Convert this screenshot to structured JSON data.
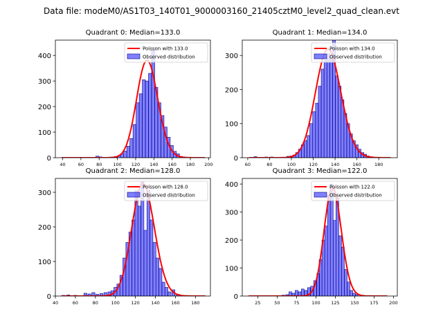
{
  "figure": {
    "suptitle": "Data file: modeM0/AS1T03_140T01_9000003160_21405cztM0_level2_quad_clean.evt"
  },
  "chart_data": [
    {
      "type": "bar",
      "title": "Quadrant 0: Median=133.0",
      "xlim": [
        32,
        202
      ],
      "ylim": [
        0,
        460
      ],
      "xticks": [
        40,
        60,
        80,
        100,
        120,
        140,
        160,
        180,
        200
      ],
      "yticks": [
        0,
        100,
        200,
        300,
        400
      ],
      "bin_width": 3.4,
      "legend": {
        "placement": "top-right",
        "entries": [
          "Poisson with 133.0",
          "Observed distribution"
        ]
      },
      "poisson_mean": 133.0,
      "curve_x_range": [
        39,
        196
      ],
      "bins": [
        [
          78,
          6
        ],
        [
          81.4,
          3
        ],
        [
          84.8,
          1
        ],
        [
          88.2,
          1
        ],
        [
          91.6,
          2
        ],
        [
          95,
          3
        ],
        [
          98.4,
          5
        ],
        [
          101.8,
          8
        ],
        [
          105.2,
          15
        ],
        [
          108.6,
          26
        ],
        [
          112,
          45
        ],
        [
          115.4,
          75
        ],
        [
          118.8,
          130
        ],
        [
          122.2,
          215
        ],
        [
          125.6,
          250
        ],
        [
          129,
          305
        ],
        [
          132.4,
          300
        ],
        [
          135.8,
          330
        ],
        [
          139.2,
          420
        ],
        [
          142.6,
          275
        ],
        [
          146,
          215
        ],
        [
          149.4,
          165
        ],
        [
          152.8,
          120
        ],
        [
          156.2,
          80
        ],
        [
          159.6,
          48
        ],
        [
          163,
          25
        ],
        [
          166.4,
          15
        ],
        [
          169.8,
          5
        ],
        [
          173.2,
          3
        ]
      ]
    },
    {
      "type": "bar",
      "title": "Quadrant 1: Median=134.0",
      "xlim": [
        55,
        197
      ],
      "ylim": [
        0,
        345
      ],
      "xticks": [
        60,
        80,
        100,
        120,
        140,
        160,
        180
      ],
      "yticks": [
        0,
        100,
        200,
        300
      ],
      "bin_width": 2.6,
      "legend": {
        "placement": "top-right",
        "entries": [
          "Poisson with 134.0",
          "Observed distribution"
        ]
      },
      "poisson_mean": 134.0,
      "curve_x_range": [
        61,
        191
      ],
      "bins": [
        [
          67,
          3
        ],
        [
          77,
          2
        ],
        [
          82,
          2
        ],
        [
          90,
          1
        ],
        [
          97,
          4
        ],
        [
          100,
          5
        ],
        [
          102.6,
          8
        ],
        [
          105.2,
          15
        ],
        [
          107.8,
          25
        ],
        [
          110.4,
          38
        ],
        [
          113,
          50
        ],
        [
          115.6,
          65
        ],
        [
          118.2,
          100
        ],
        [
          120.8,
          135
        ],
        [
          123.4,
          160
        ],
        [
          126,
          210
        ],
        [
          128.6,
          260
        ],
        [
          131.2,
          285
        ],
        [
          133.8,
          305
        ],
        [
          136.4,
          300
        ],
        [
          139,
          345
        ],
        [
          141.6,
          240
        ],
        [
          144.2,
          210
        ],
        [
          146.8,
          170
        ],
        [
          149.4,
          130
        ],
        [
          152,
          100
        ],
        [
          154.6,
          70
        ],
        [
          157.2,
          50
        ],
        [
          159.8,
          38
        ],
        [
          162.4,
          25
        ],
        [
          165,
          15
        ],
        [
          167.6,
          10
        ],
        [
          170.2,
          5
        ],
        [
          172.8,
          3
        ]
      ]
    },
    {
      "type": "bar",
      "title": "Quadrant 2: Median=128.0",
      "xlim": [
        40,
        195
      ],
      "ylim": [
        0,
        340
      ],
      "xticks": [
        40,
        60,
        80,
        100,
        120,
        140,
        160,
        180
      ],
      "yticks": [
        0,
        100,
        200,
        300
      ],
      "bin_width": 3.0,
      "legend": {
        "placement": "top-right",
        "entries": [
          "Poisson with 128.0",
          "Observed distribution"
        ]
      },
      "poisson_mean": 128.0,
      "curve_x_range": [
        46,
        190
      ],
      "bins": [
        [
          48,
          2
        ],
        [
          53,
          3
        ],
        [
          60,
          2
        ],
        [
          65,
          1
        ],
        [
          70,
          8
        ],
        [
          74,
          6
        ],
        [
          78,
          10
        ],
        [
          82,
          5
        ],
        [
          86,
          7
        ],
        [
          90,
          10
        ],
        [
          94,
          12
        ],
        [
          97,
          15
        ],
        [
          100,
          25
        ],
        [
          103,
          35
        ],
        [
          106,
          60
        ],
        [
          109,
          110
        ],
        [
          112,
          155
        ],
        [
          115,
          185
        ],
        [
          118,
          220
        ],
        [
          121,
          305
        ],
        [
          124,
          260
        ],
        [
          127,
          330
        ],
        [
          130,
          190
        ],
        [
          133,
          305
        ],
        [
          136,
          220
        ],
        [
          139,
          155
        ],
        [
          142,
          110
        ],
        [
          145,
          80
        ],
        [
          148,
          40
        ],
        [
          151,
          25
        ],
        [
          154,
          12
        ],
        [
          158,
          18
        ],
        [
          162,
          5
        ]
      ]
    },
    {
      "type": "bar",
      "title": "Quadrant 3: Median=122.0",
      "xlim": [
        5,
        205
      ],
      "ylim": [
        0,
        420
      ],
      "xticks": [
        25,
        50,
        75,
        100,
        125,
        150,
        175,
        200
      ],
      "yticks": [
        0,
        100,
        200,
        300,
        400
      ],
      "bin_width": 3.6,
      "legend": {
        "placement": "top-right",
        "entries": [
          "Poisson with 122.0",
          "Observed distribution"
        ]
      },
      "poisson_mean": 122.0,
      "curve_x_range": [
        13,
        192
      ],
      "bins": [
        [
          58,
          3
        ],
        [
          63,
          5
        ],
        [
          67,
          15
        ],
        [
          71,
          10
        ],
        [
          75,
          20
        ],
        [
          79,
          15
        ],
        [
          83,
          25
        ],
        [
          87,
          20
        ],
        [
          91,
          30
        ],
        [
          95,
          35
        ],
        [
          99,
          55
        ],
        [
          103,
          80
        ],
        [
          106,
          130
        ],
        [
          109.6,
          200
        ],
        [
          113.2,
          250
        ],
        [
          116.8,
          360
        ],
        [
          120.4,
          400
        ],
        [
          124,
          270
        ],
        [
          127.6,
          350
        ],
        [
          131.2,
          215
        ],
        [
          134.8,
          175
        ],
        [
          138.4,
          95
        ],
        [
          142,
          50
        ],
        [
          145.6,
          20
        ],
        [
          149.2,
          10
        ],
        [
          152.8,
          5
        ],
        [
          160,
          3
        ],
        [
          170,
          2
        ]
      ]
    }
  ]
}
